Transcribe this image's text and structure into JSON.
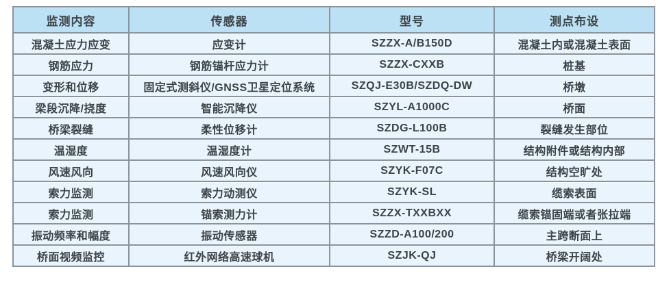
{
  "table": {
    "headers": [
      "监测内容",
      "传感器",
      "型号",
      "测点布设"
    ],
    "rows": [
      [
        "混凝土应力应变",
        "应变计",
        "SZZX-A/B150D",
        "混凝土内或混凝土表面"
      ],
      [
        "钢筋应力",
        "钢筋锚杆应力计",
        "SZZX-CXXB",
        "桩基"
      ],
      [
        "变形和位移",
        "固定式测斜仪/GNSS卫星定位系统",
        "SZQJ-E30B/SZDQ-DW",
        "桥墩"
      ],
      [
        "梁段沉降/挠度",
        "智能沉降仪",
        "SZYL-A1000C",
        "桥面"
      ],
      [
        "桥梁裂缝",
        "柔性位移计",
        "SZDG-L100B",
        "裂缝发生部位"
      ],
      [
        "温湿度",
        "温湿度计",
        "SZWT-15B",
        "结构附件或结构内部"
      ],
      [
        "风速风向",
        "风速风向仪",
        "SZYK-F07C",
        "结构空旷处"
      ],
      [
        "索力监测",
        "索力动测仪",
        "SZYK-SL",
        "缆索表面"
      ],
      [
        "索力监测",
        "锚索测力计",
        "SZZX-TXXBXX",
        "缆索锚固端或者张拉端"
      ],
      [
        "振动频率和幅度",
        "振动传感器",
        "SZZD-A100/200",
        "主跨断面上"
      ],
      [
        "桥面视频监控",
        "红外网络高速球机",
        "SZJK-QJ",
        "桥梁开阔处"
      ]
    ]
  },
  "colors": {
    "header_bg": "#bce0f4",
    "row_bg": "#e9f4fc",
    "grid_border": "#8a949c",
    "outer_border": "#5f6a72",
    "text": "#3c4347"
  }
}
